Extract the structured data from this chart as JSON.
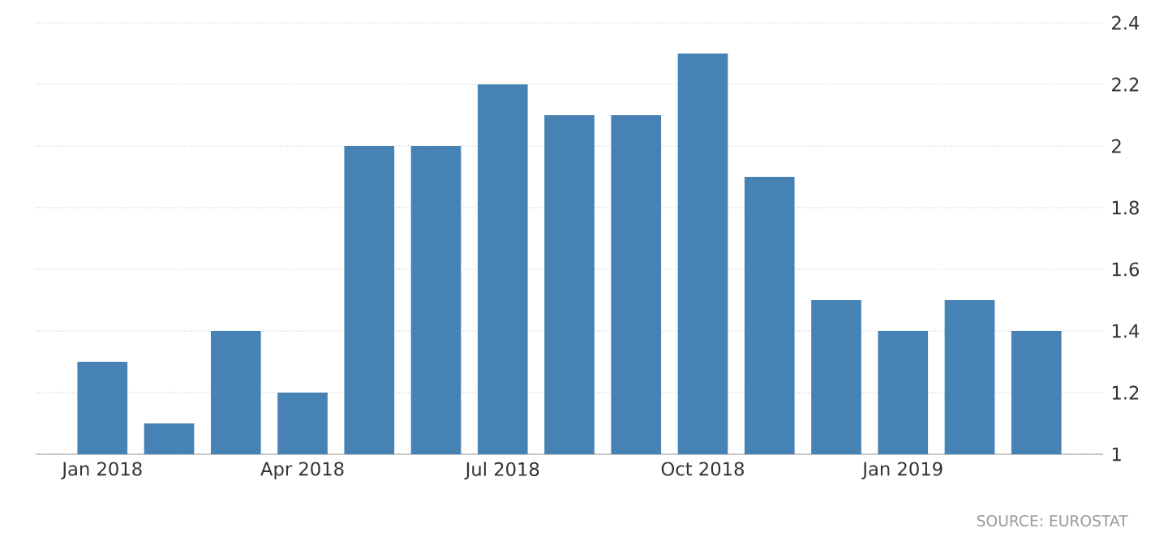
{
  "chart_data": {
    "type": "bar",
    "categories": [
      "Jan 2018",
      null,
      null,
      "Apr 2018",
      null,
      null,
      "Jul 2018",
      null,
      null,
      "Oct 2018",
      null,
      null,
      "Jan 2019",
      null,
      null
    ],
    "values": [
      1.3,
      1.1,
      1.4,
      1.2,
      2.0,
      2.0,
      2.2,
      2.1,
      2.1,
      2.3,
      1.9,
      1.5,
      1.4,
      1.5,
      1.4
    ],
    "color": "#4682b4",
    "ylim": [
      1,
      2.4
    ],
    "yticks": [
      1,
      1.2,
      1.4,
      1.6,
      1.8,
      2,
      2.2,
      2.4
    ],
    "grid": "y",
    "annotations": [
      "SOURCE: EUROSTAT"
    ]
  }
}
